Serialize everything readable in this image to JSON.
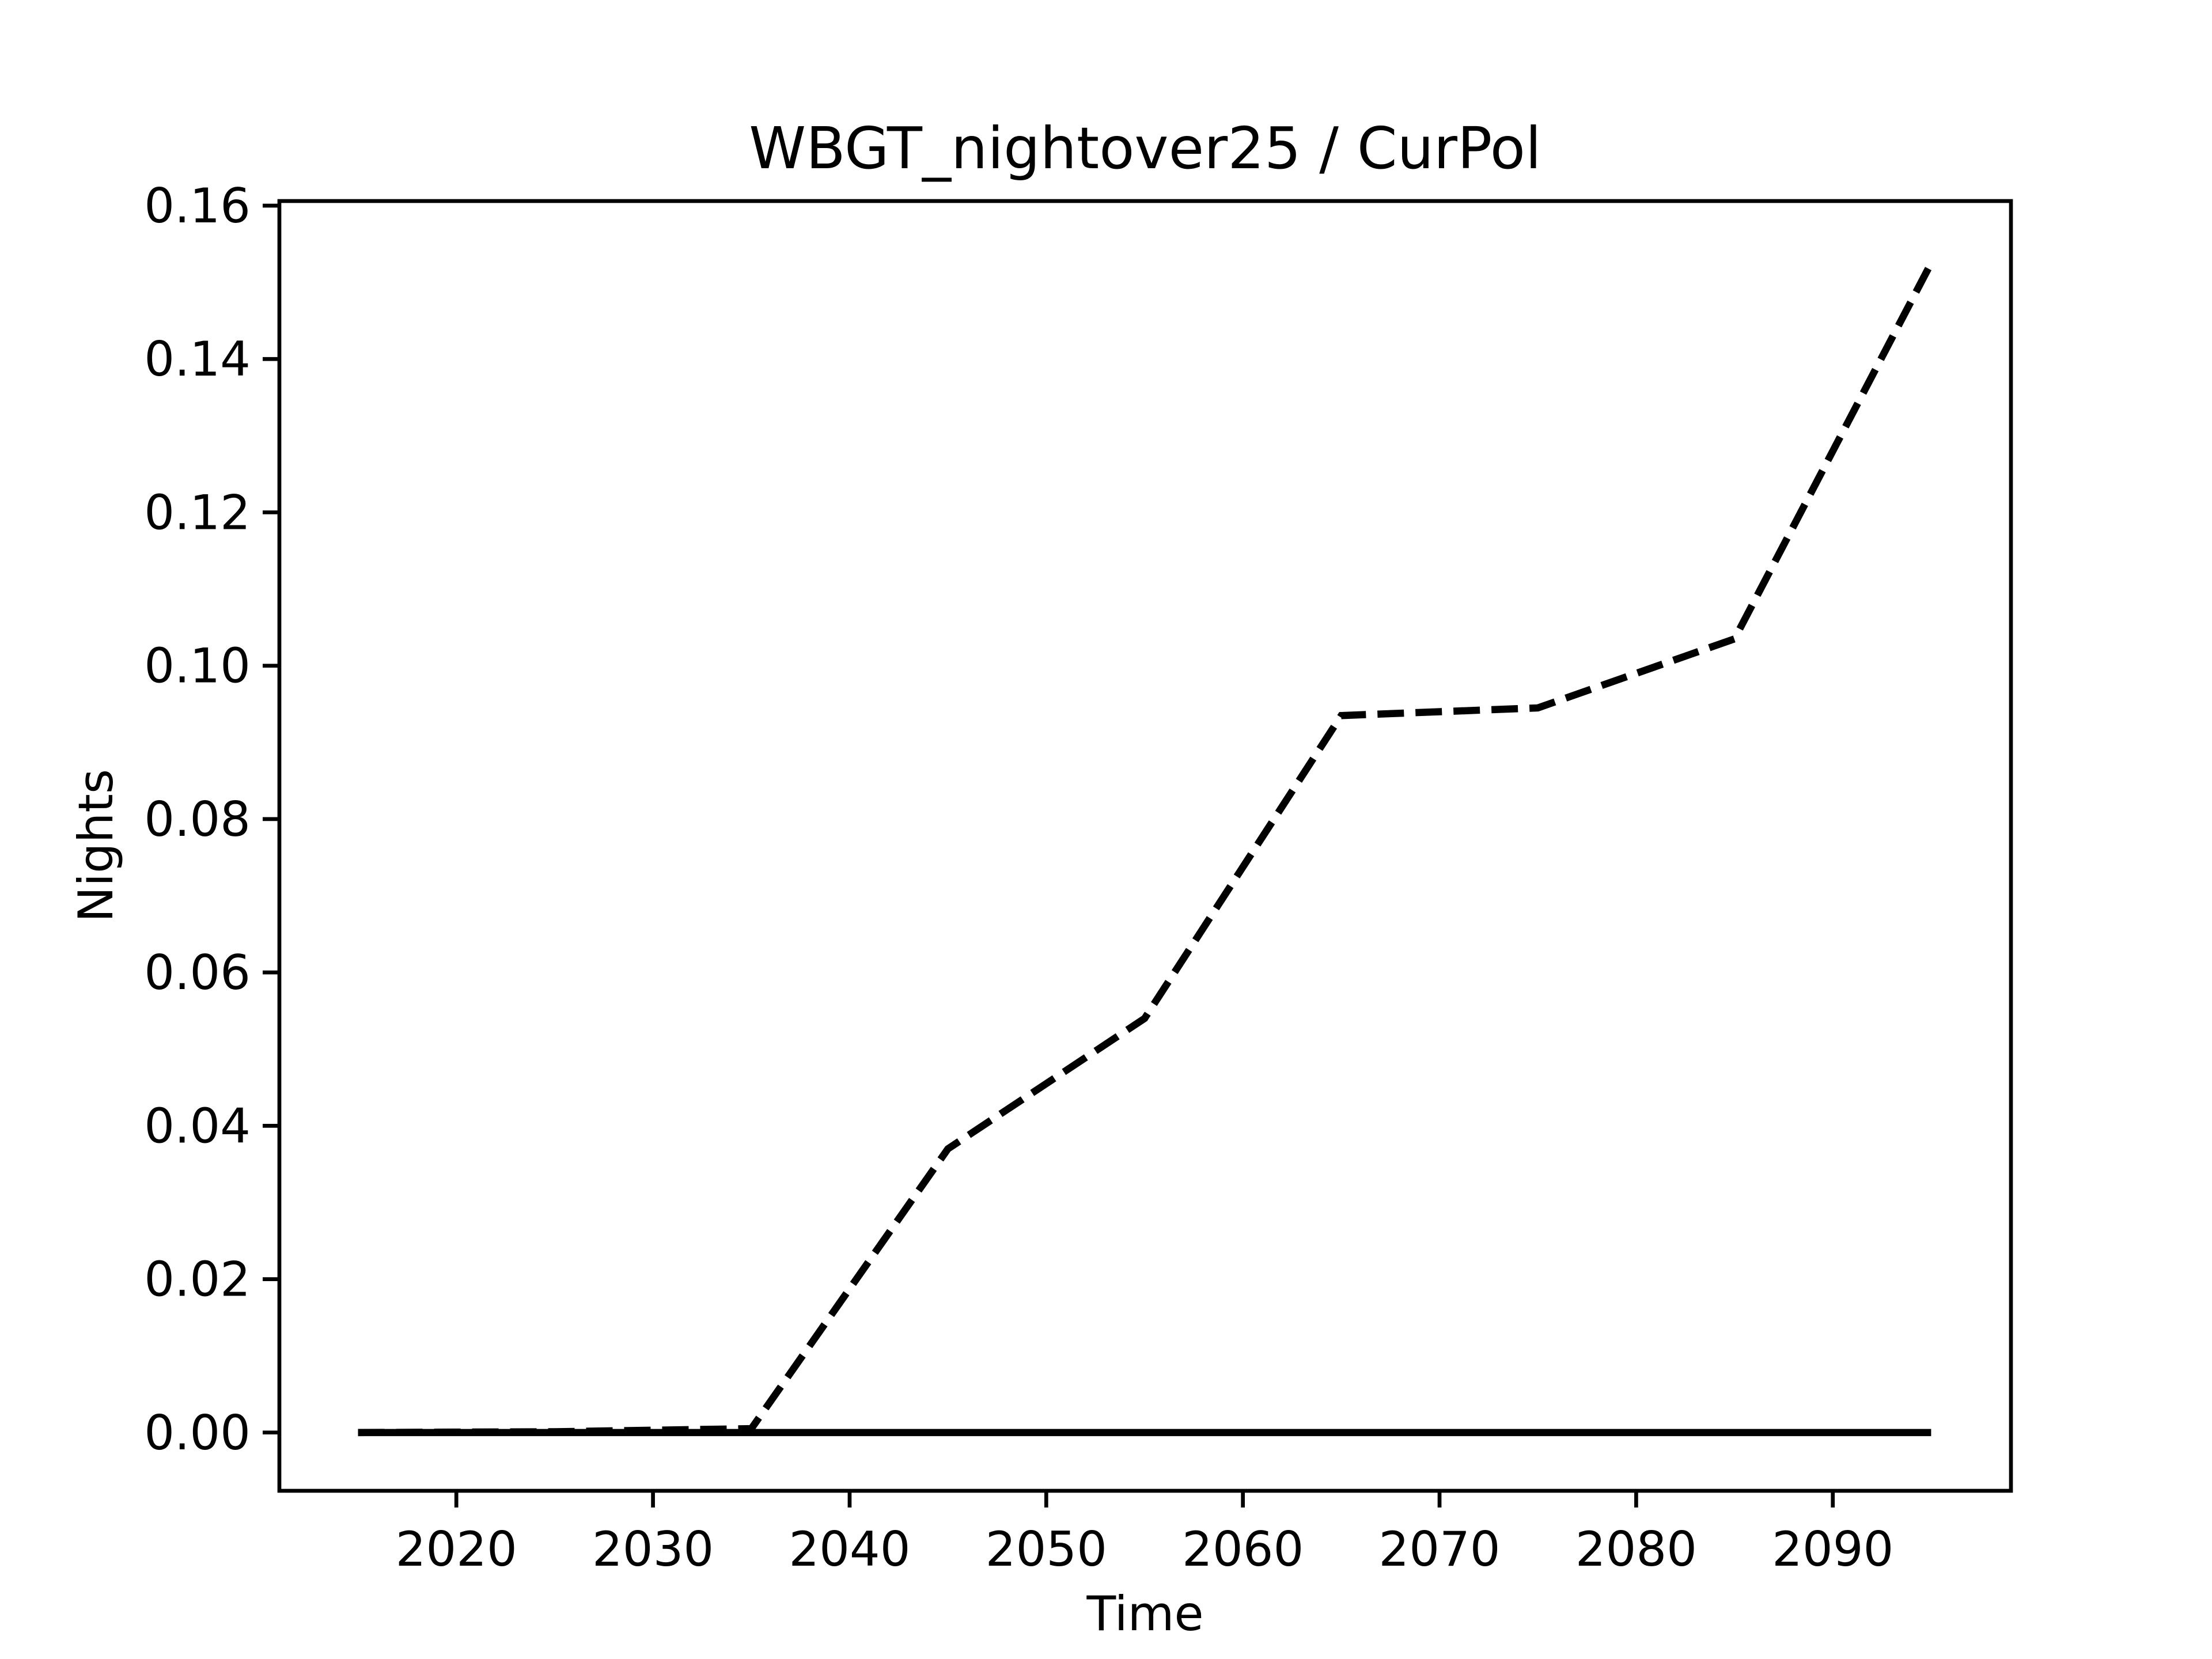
{
  "chart_data": {
    "type": "line",
    "title": "WBGT_nightover25 / CurPol",
    "x_label": "Time",
    "y_label": "Nights",
    "x": [
      2015,
      2025,
      2035,
      2045,
      2055,
      2065,
      2075,
      2085,
      2095
    ],
    "series": [
      {
        "color": "#000000",
        "dashed": true,
        "values": [
          0,
          0.0001,
          0.0005,
          0.037,
          0.054,
          0.0935,
          0.0945,
          0.1035,
          0.1525
        ]
      },
      {
        "color": "#000000",
        "dashed": false,
        "values": [
          0,
          0,
          0,
          0,
          0,
          0,
          0,
          0,
          0
        ]
      }
    ],
    "xlim": [
      2011,
      2099.06
    ],
    "ylim": [
      -0.0076,
      0.1606
    ],
    "xticks": [
      2020,
      2030,
      2040,
      2050,
      2060,
      2070,
      2080,
      2090
    ],
    "yticks": [
      {
        "value": 0,
        "label": "0.00"
      },
      0.02,
      0.04,
      0.06,
      0.08,
      {
        "value": 0.1,
        "label": "0.10"
      },
      0.12,
      0.14,
      0.16
    ],
    "grid": false
  }
}
